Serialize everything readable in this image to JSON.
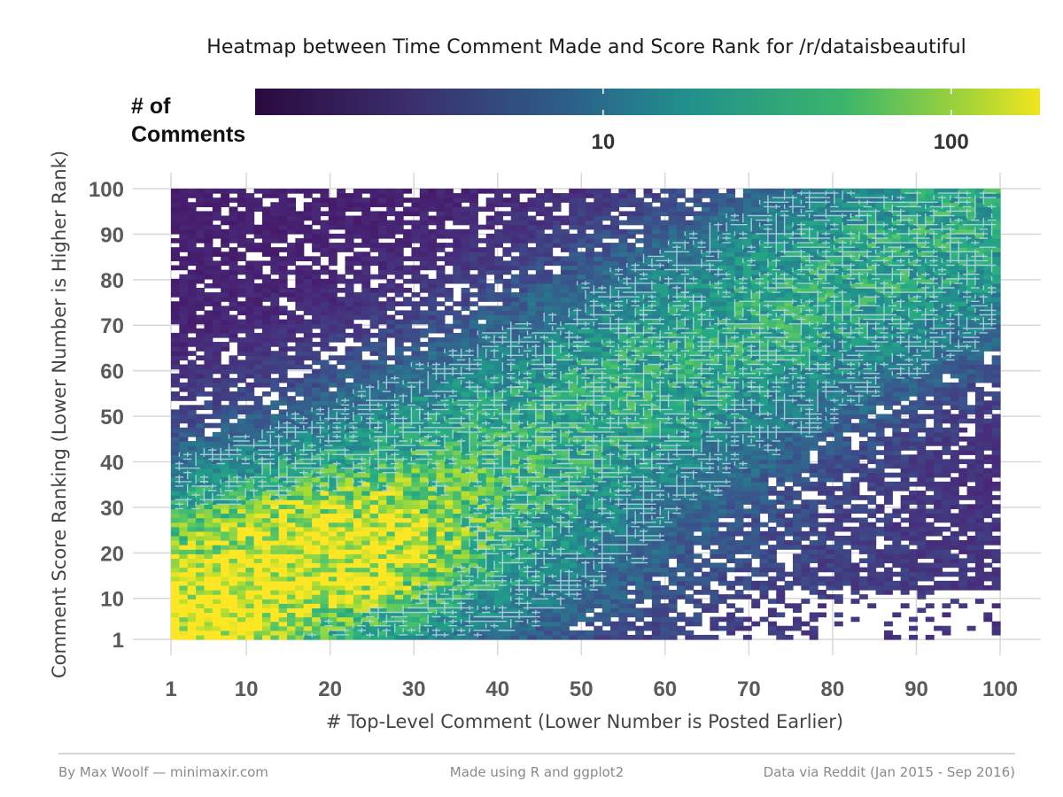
{
  "chart_data": {
    "type": "heatmap",
    "title": "Heatmap between Time Comment Made and Score Rank for /r/dataisbeautiful",
    "xlabel": "# Top-Level Comment (Lower Number is Posted Earlier)",
    "ylabel": "Comment Score Ranking (Lower Number is Higher Rank)",
    "xlim": [
      1,
      100
    ],
    "ylim": [
      1,
      100
    ],
    "x_ticks": [
      "1",
      "10",
      "20",
      "30",
      "40",
      "50",
      "60",
      "70",
      "80",
      "90",
      "100"
    ],
    "y_ticks": [
      "1",
      "10",
      "20",
      "30",
      "40",
      "50",
      "60",
      "70",
      "80",
      "90",
      "100"
    ],
    "legend": {
      "title_line1": "# of",
      "title_line2": "Comments",
      "scale": "log10",
      "range": [
        1,
        180
      ],
      "ticks": [
        "10",
        "100"
      ],
      "colormap": "viridis",
      "position": "top"
    },
    "grid": true,
    "contours": true,
    "intensity_hotspots": [
      {
        "x": 2,
        "y": 2,
        "count": 180
      },
      {
        "x": 15,
        "y": 12,
        "count": 60
      },
      {
        "x": 30,
        "y": 25,
        "count": 40
      },
      {
        "x": 50,
        "y": 50,
        "count": 25
      },
      {
        "x": 90,
        "y": 90,
        "count": 12
      }
    ],
    "colors": [
      "#440154",
      "#3b528b",
      "#21918c",
      "#5ec962",
      "#fde725"
    ]
  },
  "footer": {
    "left": "By Max Woolf — minimaxir.com",
    "center": "Made using R and ggplot2",
    "right": "Data via Reddit (Jan 2015 - Sep 2016)"
  }
}
